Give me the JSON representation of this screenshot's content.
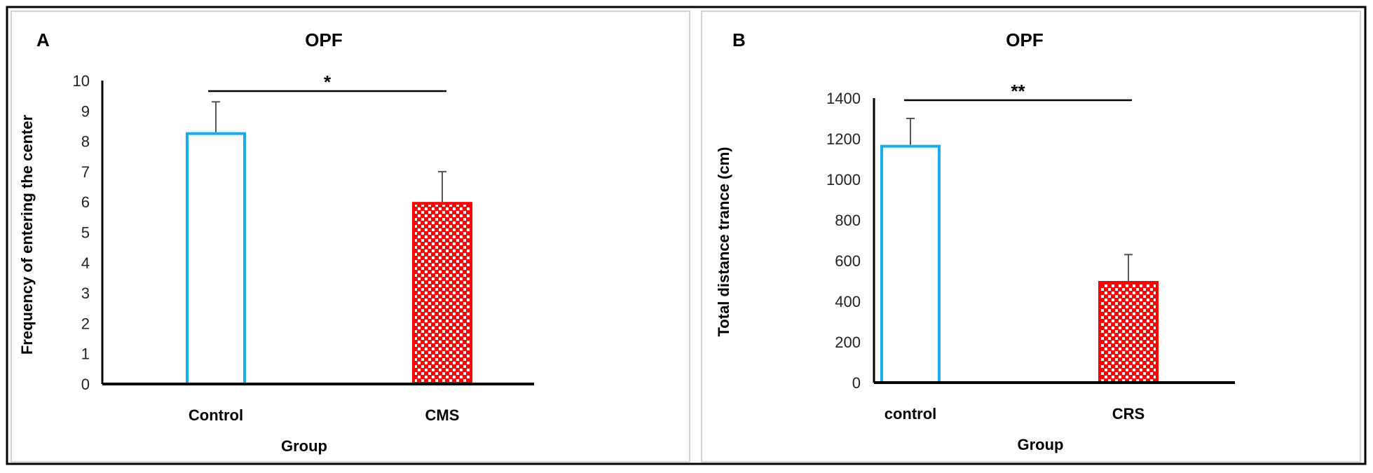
{
  "colors": {
    "control": "#1aaee8",
    "treatment": "#ff0000",
    "axis": "#000000",
    "error": "#555555"
  },
  "chart_data": [
    {
      "panel": "A",
      "type": "bar",
      "title": "OPF",
      "xlabel": "Group",
      "ylabel": "Frequency of entering the center",
      "categories": [
        "Control",
        "CMS"
      ],
      "values": [
        8.3,
        6.0
      ],
      "errors": [
        1.0,
        1.0
      ],
      "ylim": [
        0,
        10
      ],
      "yticks": [
        0,
        1,
        2,
        3,
        4,
        5,
        6,
        7,
        8,
        9,
        10
      ],
      "significance": "*",
      "grid": false
    },
    {
      "panel": "B",
      "type": "bar",
      "title": "OPF",
      "xlabel": "Group",
      "ylabel": "Total distance trance (cm)",
      "categories": [
        "control",
        "CRS"
      ],
      "values": [
        1170,
        500
      ],
      "errors": [
        130,
        130
      ],
      "ylim": [
        0,
        1400
      ],
      "yticks": [
        0,
        200,
        400,
        600,
        800,
        1000,
        1200,
        1400
      ],
      "significance": "**",
      "grid": false
    }
  ]
}
